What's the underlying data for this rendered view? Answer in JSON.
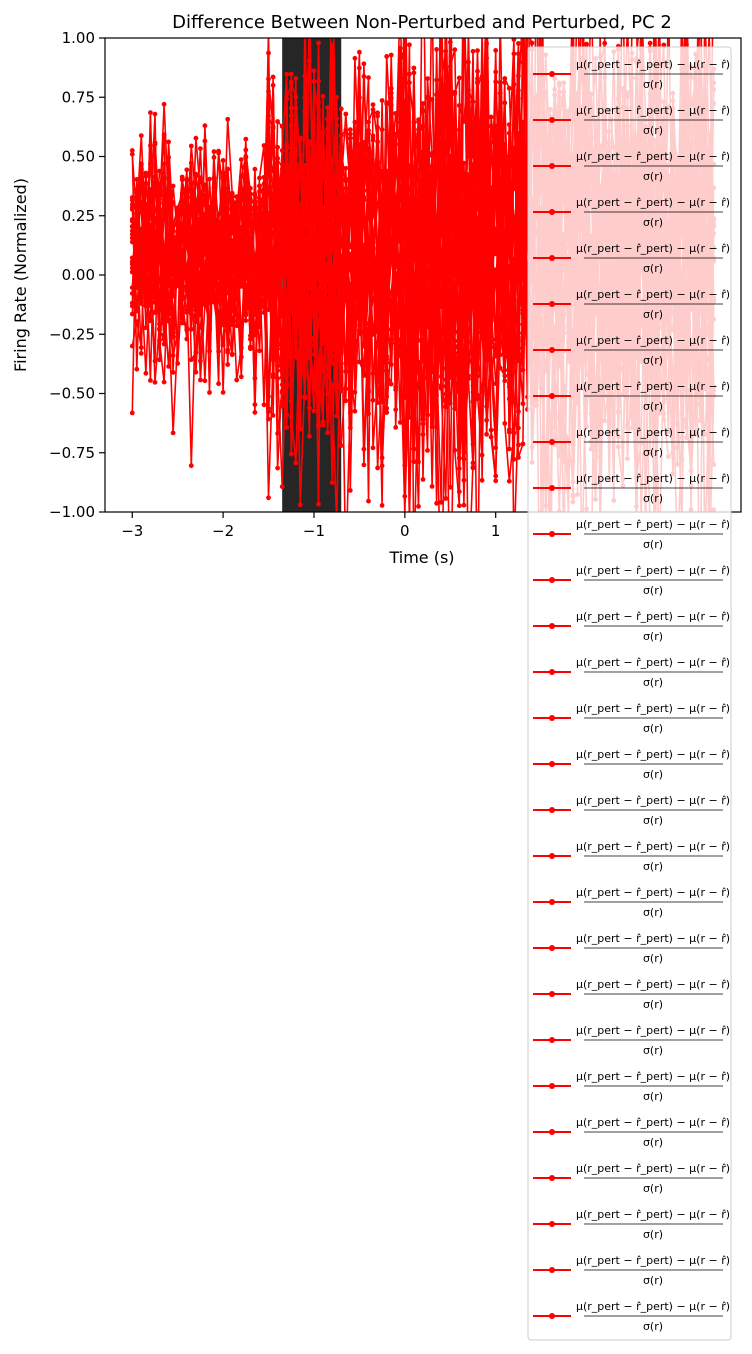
{
  "chart_data": {
    "type": "line",
    "title": "Difference Between Non-Perturbed and Perturbed, PC 2",
    "xlabel": "Time (s)",
    "ylabel": "Firing Rate (Normalized)",
    "xlim": [
      -3.3,
      3.7
    ],
    "ylim": [
      -1.0,
      1.0
    ],
    "xticks": [
      -3,
      -2,
      -1,
      0,
      1
    ],
    "xtick_labels": [
      "−3",
      "−2",
      "−1",
      "0",
      "1"
    ],
    "yticks": [
      -1.0,
      -0.75,
      -0.5,
      -0.25,
      0.0,
      0.25,
      0.5,
      0.75,
      1.0
    ],
    "ytick_labels": [
      "−1.00",
      "−0.75",
      "−0.50",
      "−0.25",
      "0.00",
      "0.25",
      "0.50",
      "0.75",
      "1.00"
    ],
    "perturbation_window": [
      -1.35,
      -0.7
    ],
    "series_color": "#ff0000",
    "band_color": "#000000",
    "series_count": 28,
    "time_range": [
      -3.0,
      3.4
    ],
    "time_step": 0.05,
    "legend": {
      "location": "upper right",
      "entry_numerator": "μ(r_pert − r̂_pert) − μ(r − r̂)",
      "entry_denominator": "σ(r)"
    }
  }
}
